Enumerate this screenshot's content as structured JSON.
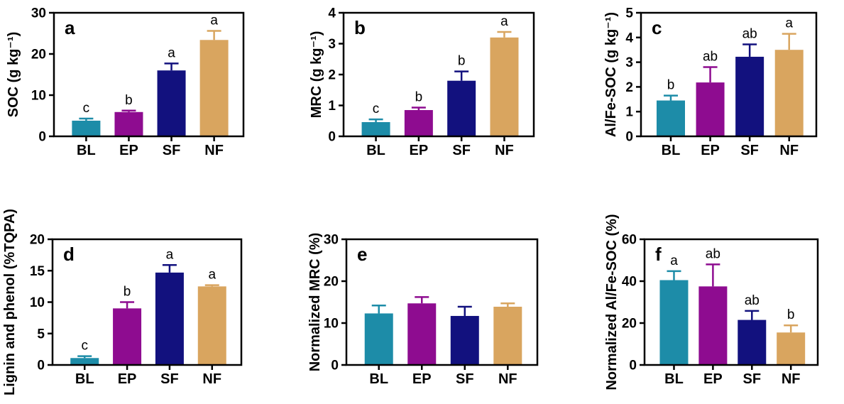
{
  "figure": {
    "background": "#ffffff",
    "categories": [
      "BL",
      "EP",
      "SF",
      "NF"
    ],
    "bar_colors": {
      "BL": "#1D8CA8",
      "EP": "#8E0C90",
      "SF": "#12117E",
      "NF": "#D9A55F"
    },
    "axis_color": "#000000",
    "text_color": "#000000"
  },
  "chart_data": [
    {
      "id": "a",
      "type": "bar",
      "panel_label": "a",
      "ylabel": "SOC (g kg⁻¹)",
      "categories": [
        "BL",
        "EP",
        "SF",
        "NF"
      ],
      "values": [
        3.8,
        5.9,
        16.0,
        23.4
      ],
      "errors_up": [
        0.5,
        0.35,
        1.7,
        2.2
      ],
      "sig_letters": [
        "c",
        "b",
        "a",
        "a"
      ],
      "bar_colors": [
        "#1D8CA8",
        "#8E0C90",
        "#12117E",
        "#D9A55F"
      ],
      "ylim": [
        0,
        30
      ],
      "yticks": [
        0,
        10,
        20,
        30
      ],
      "grid": false,
      "legend": "none"
    },
    {
      "id": "b",
      "type": "bar",
      "panel_label": "b",
      "ylabel": "MRC (g kg⁻¹)",
      "categories": [
        "BL",
        "EP",
        "SF",
        "NF"
      ],
      "values": [
        0.46,
        0.85,
        1.8,
        3.2
      ],
      "errors_up": [
        0.09,
        0.08,
        0.3,
        0.18
      ],
      "sig_letters": [
        "c",
        "b",
        "b",
        "a"
      ],
      "bar_colors": [
        "#1D8CA8",
        "#8E0C90",
        "#12117E",
        "#D9A55F"
      ],
      "ylim": [
        0,
        4
      ],
      "yticks": [
        0,
        1,
        2,
        3,
        4
      ],
      "grid": false,
      "legend": "none"
    },
    {
      "id": "c",
      "type": "bar",
      "panel_label": "c",
      "ylabel": "Al/Fe-SOC (g kg⁻¹)",
      "categories": [
        "BL",
        "EP",
        "SF",
        "NF"
      ],
      "values": [
        1.45,
        2.18,
        3.22,
        3.5
      ],
      "errors_up": [
        0.2,
        0.62,
        0.5,
        0.65
      ],
      "sig_letters": [
        "b",
        "ab",
        "ab",
        "a"
      ],
      "bar_colors": [
        "#1D8CA8",
        "#8E0C90",
        "#12117E",
        "#D9A55F"
      ],
      "ylim": [
        0,
        5
      ],
      "yticks": [
        0,
        1,
        2,
        3,
        4,
        5
      ],
      "grid": false,
      "legend": "none"
    },
    {
      "id": "d",
      "type": "bar",
      "panel_label": "d",
      "ylabel": "Lignin and phenol (%TQPA)",
      "categories": [
        "BL",
        "EP",
        "SF",
        "NF"
      ],
      "values": [
        1.1,
        9.0,
        14.7,
        12.5
      ],
      "errors_up": [
        0.3,
        1.0,
        1.2,
        0.2
      ],
      "sig_letters": [
        "c",
        "b",
        "a",
        "a"
      ],
      "bar_colors": [
        "#1D8CA8",
        "#8E0C90",
        "#12117E",
        "#D9A55F"
      ],
      "ylim": [
        0,
        20
      ],
      "yticks": [
        0,
        5,
        10,
        15,
        20
      ],
      "grid": false,
      "legend": "none"
    },
    {
      "id": "e",
      "type": "bar",
      "panel_label": "e",
      "ylabel": "Normalized MRC (%)",
      "categories": [
        "BL",
        "EP",
        "SF",
        "NF"
      ],
      "values": [
        12.3,
        14.7,
        11.7,
        13.9
      ],
      "errors_up": [
        1.9,
        1.5,
        2.2,
        0.8
      ],
      "sig_letters": [
        "",
        "",
        "",
        ""
      ],
      "bar_colors": [
        "#1D8CA8",
        "#8E0C90",
        "#12117E",
        "#D9A55F"
      ],
      "ylim": [
        0,
        30
      ],
      "yticks": [
        0,
        10,
        20,
        30
      ],
      "grid": false,
      "legend": "none"
    },
    {
      "id": "f",
      "type": "bar",
      "panel_label": "f",
      "ylabel": "Normalized Al/Fe-SOC (%)",
      "categories": [
        "BL",
        "EP",
        "SF",
        "NF"
      ],
      "values": [
        40.5,
        37.5,
        21.5,
        15.5
      ],
      "errors_up": [
        4.3,
        10.5,
        4.3,
        3.4
      ],
      "sig_letters": [
        "a",
        "ab",
        "ab",
        "b"
      ],
      "bar_colors": [
        "#1D8CA8",
        "#8E0C90",
        "#12117E",
        "#D9A55F"
      ],
      "ylim": [
        0,
        60
      ],
      "yticks": [
        0,
        20,
        40,
        60
      ],
      "grid": false,
      "legend": "none"
    }
  ]
}
